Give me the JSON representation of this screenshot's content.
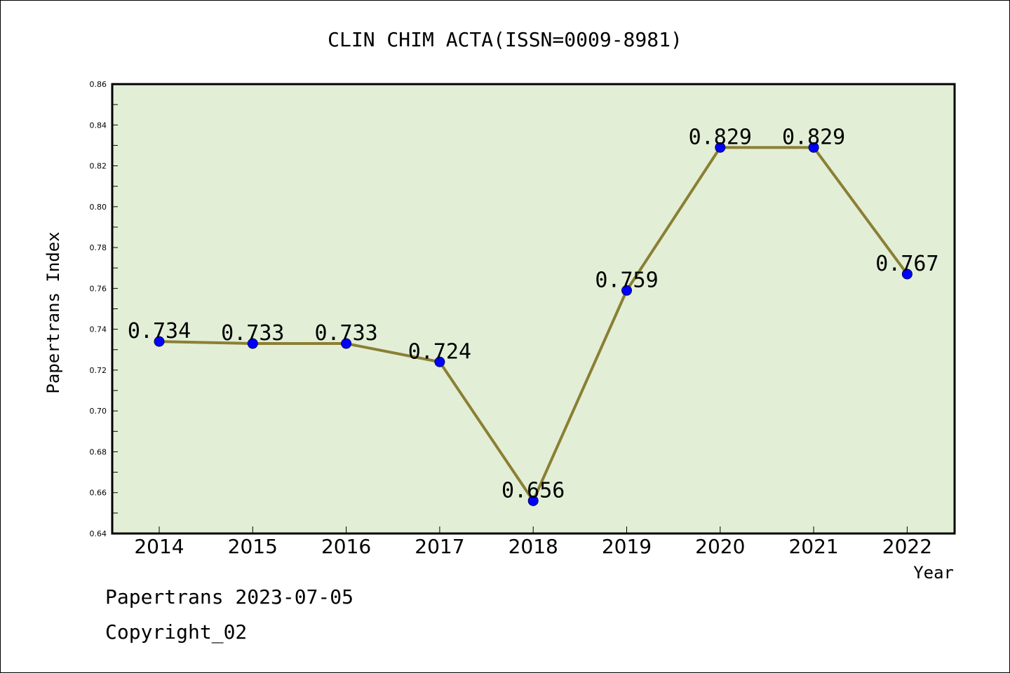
{
  "chart_data": {
    "type": "line",
    "title": "CLIN CHIM ACTA(ISSN=0009-8981)",
    "xlabel": "Year",
    "ylabel": "Papertrans Index",
    "categories": [
      "2014",
      "2015",
      "2016",
      "2017",
      "2018",
      "2019",
      "2020",
      "2021",
      "2022"
    ],
    "values": [
      0.734,
      0.733,
      0.733,
      0.724,
      0.656,
      0.759,
      0.829,
      0.829,
      0.767
    ],
    "data_labels": [
      "0.734",
      "0.733",
      "0.733",
      "0.724",
      "0.656",
      "0.759",
      "0.829",
      "0.829",
      "0.767"
    ],
    "ylim": [
      0.64,
      0.86
    ],
    "yticks": [
      "0.64",
      "0.66",
      "0.68",
      "0.70",
      "0.72",
      "0.74",
      "0.76",
      "0.78",
      "0.80",
      "0.82",
      "0.84",
      "0.86"
    ],
    "grid": false,
    "legend": "none",
    "colors": {
      "plot_background": "#e2efd6",
      "line": "#8b7f35",
      "marker": "#0000ff"
    }
  },
  "footer": {
    "stamp": "Papertrans 2023-07-05",
    "copyright": "Copyright_02"
  }
}
